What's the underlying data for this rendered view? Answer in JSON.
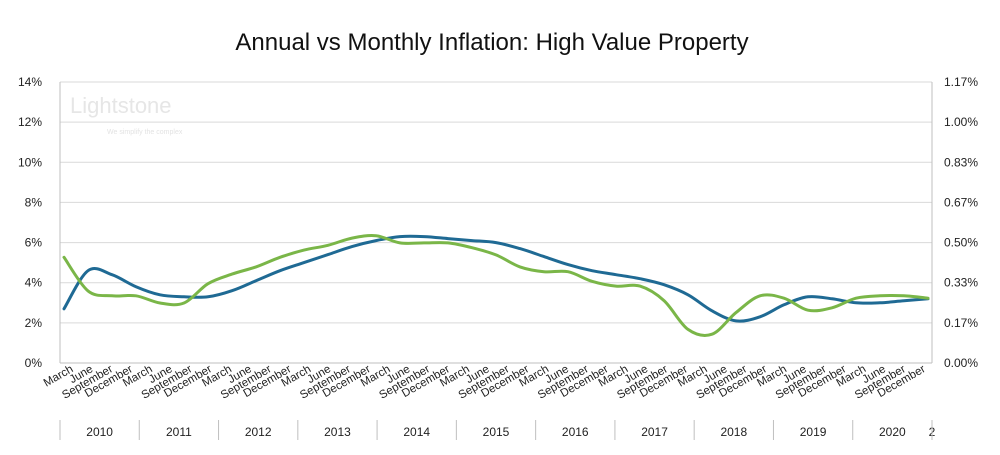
{
  "chart_data": {
    "type": "line",
    "title": "Annual vs Monthly Inflation: High Value Property",
    "watermark": {
      "name": "Lightstone",
      "tagline": "We simplify the complex"
    },
    "x_labels": [
      "March",
      "June",
      "September",
      "December",
      "March",
      "June",
      "September",
      "December",
      "March",
      "June",
      "September",
      "December",
      "March",
      "June",
      "September",
      "December",
      "March",
      "June",
      "September",
      "December",
      "March",
      "June",
      "September",
      "December",
      "March",
      "June",
      "September",
      "December",
      "March",
      "June",
      "September",
      "December",
      "March",
      "June",
      "September",
      "December",
      "March",
      "June",
      "September",
      "December",
      "March",
      "June",
      "September",
      "December"
    ],
    "year_labels": [
      "2010",
      "2011",
      "2012",
      "2013",
      "2014",
      "2015",
      "2016",
      "2017",
      "2018",
      "2019",
      "2020",
      "2"
    ],
    "left_axis": {
      "ticks": [
        "0%",
        "2%",
        "4%",
        "6%",
        "8%",
        "10%",
        "12%",
        "14%"
      ],
      "ylim": [
        0,
        14
      ]
    },
    "right_axis": {
      "ticks": [
        "0.00%",
        "0.17%",
        "0.33%",
        "0.50%",
        "0.67%",
        "0.83%",
        "1.00%",
        "1.17%"
      ],
      "ylim": [
        0,
        1.17
      ]
    },
    "grid": true,
    "legend": "none",
    "series": [
      {
        "axis": "left",
        "color": "#1f6a94",
        "values": [
          2.7,
          4.6,
          4.4,
          3.8,
          3.4,
          3.3,
          3.3,
          3.6,
          4.1,
          4.6,
          5.0,
          5.4,
          5.8,
          6.1,
          6.3,
          6.3,
          6.2,
          6.1,
          6.0,
          5.7,
          5.3,
          4.9,
          4.6,
          4.4,
          4.2,
          3.9,
          3.4,
          2.6,
          2.1,
          2.3,
          2.9,
          3.3,
          3.2,
          3.0,
          3.0,
          3.1,
          3.2
        ]
      },
      {
        "axis": "right",
        "color": "#7ab648",
        "values": [
          0.44,
          0.3,
          0.28,
          0.28,
          0.25,
          0.25,
          0.33,
          0.37,
          0.4,
          0.44,
          0.47,
          0.49,
          0.52,
          0.53,
          0.5,
          0.5,
          0.5,
          0.48,
          0.45,
          0.4,
          0.38,
          0.38,
          0.34,
          0.32,
          0.32,
          0.26,
          0.14,
          0.12,
          0.21,
          0.28,
          0.27,
          0.22,
          0.23,
          0.27,
          0.28,
          0.28,
          0.27
        ]
      }
    ]
  }
}
